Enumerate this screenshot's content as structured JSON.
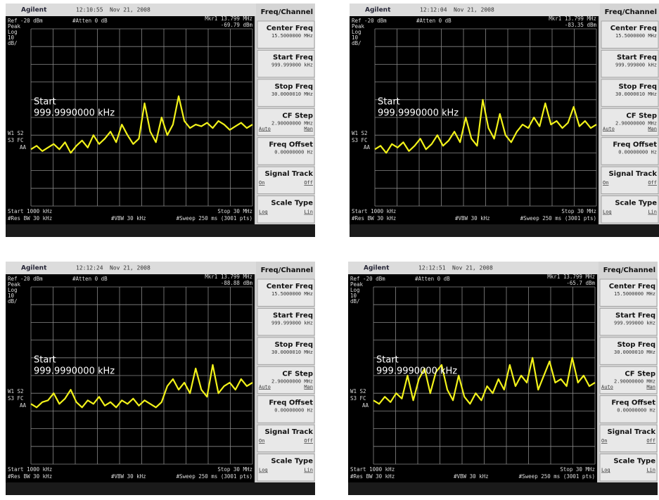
{
  "common": {
    "brand": "Agilent",
    "date": "Nov 21, 2008",
    "marker_freq": "Mkr1 13.799 MHz",
    "ref": "Ref -20 dBm",
    "atten": "#Atten 0 dB",
    "detector": "Peak",
    "scale": [
      "Log",
      "10",
      "dB/"
    ],
    "flags": [
      "W1 S2",
      "S3 FC",
      "AA"
    ],
    "start_label": "Start",
    "start_value": "999.9990000 kHz",
    "start": "Start 1000 kHz",
    "stop": "Stop 30 MHz",
    "rbw": "#Res BW 30 kHz",
    "vbw": "#VBW 30 kHz",
    "sweep": "#Sweep 250 ms (3001 pts)",
    "ylim": [
      -120,
      -20
    ]
  },
  "menu": {
    "title": "Freq/Channel",
    "keys": [
      {
        "label": "Center Freq",
        "value": "15.5000000 MHz"
      },
      {
        "label": "Start Freq",
        "value": "999.999000 kHz"
      },
      {
        "label": "Stop Freq",
        "value": "30.0000010 MHz"
      },
      {
        "label": "CF Step",
        "value": "2.90000000 MHz",
        "options": [
          "Auto",
          "Man"
        ]
      },
      {
        "label": "Freq Offset",
        "value": "0.00000000 Hz"
      },
      {
        "label": "Signal Track",
        "options": [
          "On",
          "Off"
        ]
      },
      {
        "label": "Scale Type",
        "options": [
          "Log",
          "Lin"
        ]
      }
    ]
  },
  "screens": [
    {
      "time": "12:10:55",
      "marker_level": "-69.79 dBm",
      "trace": [
        -88,
        -86,
        -89,
        -87,
        -85,
        -88,
        -84,
        -90,
        -86,
        -83,
        -87,
        -80,
        -85,
        -82,
        -78,
        -84,
        -74,
        -80,
        -85,
        -82,
        -62,
        -78,
        -84,
        -70,
        -80,
        -74,
        -58,
        -72,
        -76,
        -74,
        -75,
        -73,
        -76,
        -72,
        -74,
        -77,
        -75,
        -73,
        -76,
        -74
      ]
    },
    {
      "time": "12:12:04",
      "marker_level": "-83.35 dBm",
      "trace": [
        -88,
        -86,
        -90,
        -85,
        -87,
        -84,
        -89,
        -86,
        -82,
        -88,
        -85,
        -80,
        -86,
        -83,
        -78,
        -84,
        -70,
        -82,
        -86,
        -60,
        -76,
        -82,
        -68,
        -80,
        -84,
        -78,
        -74,
        -76,
        -70,
        -75,
        -62,
        -74,
        -72,
        -76,
        -73,
        -64,
        -75,
        -72,
        -76,
        -74
      ]
    },
    {
      "time": "12:12:24",
      "marker_level": "-88.88 dBm",
      "trace": [
        -86,
        -88,
        -85,
        -84,
        -80,
        -86,
        -83,
        -78,
        -85,
        -88,
        -84,
        -86,
        -82,
        -87,
        -85,
        -88,
        -84,
        -86,
        -83,
        -87,
        -84,
        -86,
        -88,
        -85,
        -76,
        -72,
        -78,
        -74,
        -80,
        -66,
        -78,
        -82,
        -64,
        -80,
        -76,
        -74,
        -78,
        -72,
        -76,
        -74
      ]
    },
    {
      "time": "12:12:51",
      "marker_level": "-65.7 dBm",
      "trace": [
        -84,
        -86,
        -82,
        -85,
        -80,
        -83,
        -70,
        -84,
        -72,
        -66,
        -80,
        -68,
        -64,
        -78,
        -84,
        -70,
        -82,
        -86,
        -80,
        -84,
        -76,
        -80,
        -72,
        -78,
        -64,
        -76,
        -70,
        -74,
        -60,
        -78,
        -70,
        -62,
        -74,
        -72,
        -76,
        -60,
        -74,
        -70,
        -76,
        -74
      ]
    }
  ]
}
